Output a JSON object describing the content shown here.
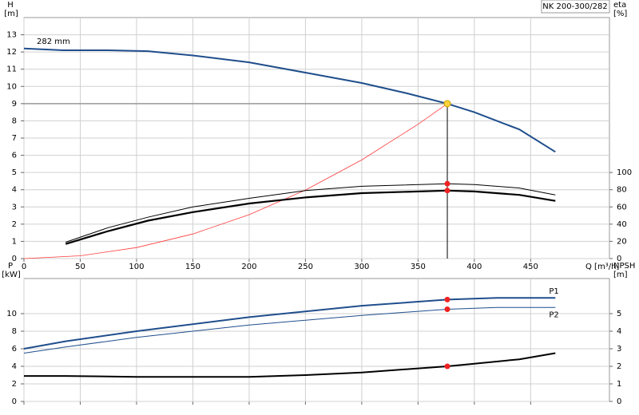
{
  "chart_data": [
    {
      "type": "line",
      "title": "NK 200-300/282",
      "y_label": "H",
      "y_unit": "[m]",
      "y2_label": "eta",
      "y2_unit": "[%]",
      "x_label": "Q [m³/h]",
      "xlim": [
        0,
        520
      ],
      "xticks": [
        0,
        50,
        100,
        150,
        200,
        250,
        300,
        350,
        400,
        450
      ],
      "ylim": [
        0,
        14
      ],
      "yticks": [
        0,
        1,
        2,
        3,
        4,
        5,
        6,
        7,
        8,
        9,
        10,
        11,
        12,
        13
      ],
      "y2lim": [
        0,
        280
      ],
      "y2ticks": [
        0,
        20,
        40,
        60,
        80,
        100
      ],
      "grid": true,
      "series": [
        {
          "name": "282 mm",
          "label_at": "start",
          "color": "#1f4e8c",
          "width": 2,
          "x": [
            0,
            35,
            75,
            110,
            150,
            200,
            250,
            300,
            340,
            376,
            400,
            440,
            472
          ],
          "values": [
            12.2,
            12.1,
            12.1,
            12.05,
            11.8,
            11.4,
            10.8,
            10.2,
            9.6,
            9.0,
            8.5,
            7.5,
            6.2
          ]
        },
        {
          "color": "#ff3b3b",
          "width": 0.8,
          "x": [
            0,
            50,
            100,
            150,
            200,
            250,
            300,
            350,
            376
          ],
          "values": [
            0,
            0.16,
            0.64,
            1.43,
            2.55,
            3.98,
            5.73,
            7.8,
            9.0
          ]
        },
        {
          "color": "#000000",
          "width": 1,
          "axis": "y2",
          "x": [
            37,
            75,
            110,
            150,
            200,
            250,
            300,
            376,
            400,
            440,
            472
          ],
          "values": [
            19,
            36,
            48,
            60,
            70,
            79,
            84,
            87,
            86,
            82,
            74
          ]
        },
        {
          "color": "#000000",
          "width": 2.2,
          "axis": "y2",
          "x": [
            37,
            75,
            110,
            150,
            200,
            250,
            300,
            376,
            400,
            440,
            472
          ],
          "values": [
            17,
            32,
            44,
            54,
            64,
            71,
            76,
            79,
            78,
            74,
            67
          ]
        }
      ],
      "duty_point": {
        "x": 376,
        "y": 9.0
      },
      "markers": [
        {
          "x": 376,
          "y": 87,
          "axis": "y2",
          "color": "#ee2222"
        },
        {
          "x": 376,
          "y": 79,
          "axis": "y2",
          "color": "#ee2222"
        }
      ]
    },
    {
      "type": "line",
      "y_label": "P",
      "y_unit": "[kW]",
      "y2_label": "NPSH",
      "y2_unit": "[m]",
      "xlim": [
        0,
        520
      ],
      "xticks": [
        0,
        50,
        100,
        150,
        200,
        250,
        300,
        350,
        400,
        450
      ],
      "show_xtick_labels": false,
      "ylim": [
        0,
        14
      ],
      "yticks": [
        0,
        2,
        4,
        6,
        8,
        10
      ],
      "y2lim": [
        0,
        7
      ],
      "y2ticks": [
        0,
        1,
        2,
        3,
        4,
        5
      ],
      "grid": true,
      "series": [
        {
          "name": "P1",
          "label_at": "end-above",
          "color": "#1f4e8c",
          "width": 2,
          "x": [
            0,
            37,
            100,
            200,
            300,
            376,
            420,
            472
          ],
          "values": [
            6.0,
            6.85,
            8.0,
            9.6,
            10.9,
            11.6,
            11.8,
            11.8
          ]
        },
        {
          "name": "P2",
          "label_at": "end-below",
          "color": "#1f4e8c",
          "width": 1,
          "x": [
            0,
            37,
            100,
            200,
            300,
            376,
            420,
            472
          ],
          "values": [
            5.5,
            6.2,
            7.3,
            8.7,
            9.8,
            10.5,
            10.7,
            10.7
          ]
        },
        {
          "color": "#000000",
          "width": 2,
          "axis": "y2",
          "x": [
            0,
            37,
            100,
            200,
            250,
            300,
            376,
            400,
            440,
            472
          ],
          "values": [
            1.45,
            1.45,
            1.4,
            1.4,
            1.5,
            1.65,
            2.0,
            2.15,
            2.4,
            2.75
          ]
        }
      ],
      "markers": [
        {
          "x": 376,
          "y": 11.6,
          "color": "#ee2222"
        },
        {
          "x": 376,
          "y": 10.5,
          "color": "#ee2222"
        },
        {
          "x": 376,
          "y": 2.0,
          "axis": "y2",
          "color": "#ee2222"
        }
      ]
    }
  ]
}
